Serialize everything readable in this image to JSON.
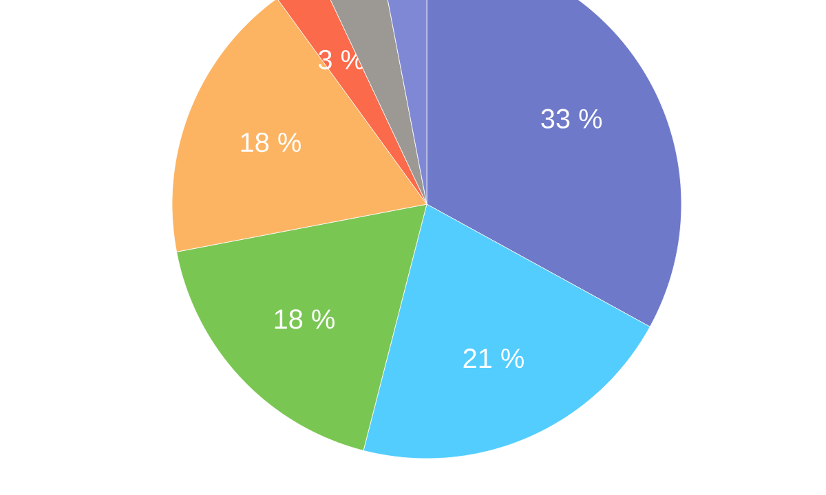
{
  "chart_data": {
    "type": "pie",
    "categories": [
      null,
      null,
      null,
      null,
      null,
      null,
      null
    ],
    "values": [
      33,
      21,
      18,
      18,
      3,
      4,
      3
    ],
    "colors": [
      "#6f79c9",
      "#53cdfe",
      "#7ac653",
      "#fdb462",
      "#fb6a4a",
      "#9c9994",
      "#7f88d4"
    ],
    "value_labels": [
      "33 %",
      "21 %",
      "18 %",
      "18 %",
      "3 %",
      null,
      null
    ]
  }
}
